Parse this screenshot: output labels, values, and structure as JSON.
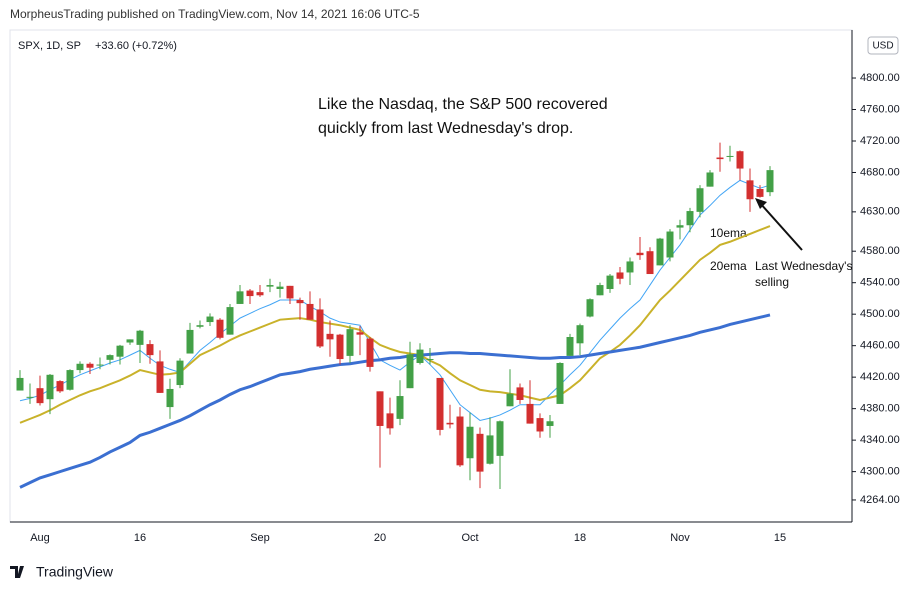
{
  "header": "MorpheusTrading published on TradingView.com, Nov 14, 2021 16:06 UTC-5",
  "footer": "TradingView",
  "chart_data": {
    "type": "candlestick",
    "symbol": "SPX, 1D, SP",
    "change": "+33.60 (+0.72%)",
    "currency": "USD",
    "annotations": [
      "Like the Nasdaq, the S&P 500 recovered",
      "quickly from last Wednesday's drop.",
      "10ema",
      "20ema",
      "Last Wednesday's",
      "selling"
    ],
    "categories": [
      null,
      null,
      "Aug",
      null,
      null,
      null,
      null,
      null,
      null,
      null,
      null,
      null,
      "16",
      null,
      null,
      null,
      null,
      null,
      null,
      null,
      null,
      null,
      null,
      null,
      "Sep",
      null,
      null,
      null,
      null,
      null,
      null,
      null,
      null,
      null,
      null,
      null,
      "20",
      null,
      null,
      null,
      null,
      null,
      null,
      null,
      null,
      "Oct",
      null,
      null,
      null,
      null,
      null,
      null,
      null,
      null,
      null,
      null,
      "18",
      null,
      null,
      null,
      null,
      null,
      null,
      null,
      null,
      null,
      "Nov",
      null,
      null,
      null,
      null,
      null,
      null,
      null,
      null,
      null,
      "15"
    ],
    "open": [
      4403,
      4395,
      4406,
      4392,
      4415,
      4404,
      4429,
      4437,
      4436,
      4442,
      4446,
      4464,
      4461,
      4462,
      4440,
      4382,
      4410,
      4450,
      4484,
      4490,
      4493,
      4474,
      4513,
      4530,
      4528,
      4535,
      4532,
      4536,
      4518,
      4513,
      4506,
      4475,
      4474,
      4447,
      4477,
      4469,
      4402,
      4374,
      4367,
      4406,
      4438,
      4442,
      4419,
      4362,
      4370,
      4317,
      4348,
      4310,
      4320,
      4383,
      4407,
      4386,
      4368,
      4358,
      4386,
      4447,
      4463,
      4497,
      4524,
      4532,
      4553,
      4553,
      4578,
      4580,
      4562,
      4572,
      4610,
      4613,
      4630,
      4662,
      4699,
      4701,
      4707,
      4670,
      4659,
      4655,
      null
    ],
    "high": [
      4429,
      4412,
      4422,
      4424,
      4416,
      4430,
      4440,
      4439,
      4445,
      4449,
      4461,
      4468,
      4480,
      4467,
      4454,
      4418,
      4444,
      4489,
      4492,
      4501,
      4495,
      4513,
      4537,
      4532,
      4537,
      4545,
      4541,
      4536,
      4521,
      4529,
      4520,
      4492,
      4475,
      4486,
      4485,
      4471,
      4402,
      4394,
      4416,
      4465,
      4463,
      4457,
      4419,
      4385,
      4382,
      4375,
      4356,
      4369,
      4365,
      4430,
      4412,
      4416,
      4374,
      4372,
      4439,
      4475,
      4488,
      4520,
      4540,
      4551,
      4560,
      4572,
      4598,
      4585,
      4597,
      4608,
      4620,
      4635,
      4664,
      4683,
      4718,
      4714,
      4708,
      4685,
      4664,
      4688,
      null
    ],
    "low": [
      4403,
      4386,
      4384,
      4373,
      4400,
      4403,
      4425,
      4424,
      4430,
      4436,
      4436,
      4461,
      4438,
      4437,
      4400,
      4367,
      4406,
      4450,
      4482,
      4485,
      4468,
      4474,
      4513,
      4513,
      4522,
      4528,
      4521,
      4513,
      4493,
      4493,
      4457,
      4446,
      4436,
      4438,
      4448,
      4427,
      4305,
      4347,
      4359,
      4406,
      4436,
      4436,
      4346,
      4355,
      4306,
      4289,
      4279,
      4309,
      4278,
      4383,
      4386,
      4361,
      4343,
      4343,
      4386,
      4447,
      4448,
      4496,
      4524,
      4527,
      4538,
      4537,
      4569,
      4551,
      4562,
      4567,
      4595,
      4604,
      4623,
      4662,
      4681,
      4694,
      4670,
      4630,
      4648,
      4650,
      null
    ],
    "close": [
      4419,
      4395,
      4387,
      4423,
      4402,
      4429,
      4437,
      4432,
      4436,
      4448,
      4460,
      4468,
      4479,
      4448,
      4400,
      4405,
      4441,
      4480,
      4486,
      4497,
      4470,
      4509,
      4529,
      4523,
      4524,
      4537,
      4535,
      4520,
      4514,
      4493,
      4459,
      4468,
      4443,
      4481,
      4474,
      4433,
      4358,
      4355,
      4396,
      4449,
      4455,
      4443,
      4353,
      4360,
      4308,
      4357,
      4300,
      4346,
      4364,
      4399,
      4391,
      4361,
      4351,
      4364,
      4438,
      4471,
      4486,
      4519,
      4537,
      4549,
      4545,
      4567,
      4575,
      4551,
      4596,
      4605,
      4613,
      4631,
      4660,
      4680,
      4697,
      4701,
      4685,
      4646,
      4649,
      4683,
      null
    ],
    "up_color": "#43a047",
    "down_color": "#d32f2f",
    "series": [
      {
        "color": "#42a5f5",
        "width": 1,
        "values": [
          4390,
          4393,
          4397,
          4404,
          4410,
          4417,
          4423,
          4428,
          4433,
          4438,
          4442,
          4448,
          4454,
          4444,
          4435,
          4430,
          4426,
          4440,
          4454,
          4464,
          4475,
          4485,
          4495,
          4501,
          4507,
          4512,
          4518,
          4518,
          4518,
          4510,
          4503,
          4495,
          4490,
          4488,
          4486,
          4464,
          4442,
          4435,
          4429,
          4439,
          4448,
          4436,
          4423,
          4404,
          4385,
          4375,
          4365,
          4368,
          4372,
          4378,
          4385,
          4385,
          4385,
          4398,
          4410,
          4423,
          4435,
          4451,
          4467,
          4481,
          4495,
          4507,
          4518,
          4537,
          4556,
          4572,
          4588,
          4607,
          4626,
          4638,
          4651,
          4661,
          4670,
          4665,
          4660,
          4664,
          null
        ]
      },
      {
        "color": "#c9b22a",
        "width": 2,
        "values": [
          4362,
          4367,
          4372,
          4378,
          4385,
          4391,
          4397,
          4402,
          4406,
          4411,
          4416,
          4422,
          4429,
          4426,
          4423,
          4424,
          4426,
          4437,
          4448,
          4454,
          4460,
          4467,
          4473,
          4478,
          4483,
          4488,
          4493,
          4494,
          4495,
          4493,
          4490,
          4488,
          4486,
          4483,
          4480,
          4470,
          4461,
          4456,
          4452,
          4450,
          4448,
          4441,
          4435,
          4425,
          4416,
          4410,
          4404,
          4402,
          4401,
          4399,
          4397,
          4394,
          4391,
          4394,
          4397,
          4406,
          4416,
          4430,
          4444,
          4452,
          4461,
          4473,
          4486,
          4502,
          4518,
          4530,
          4543,
          4556,
          4569,
          4578,
          4588,
          4592,
          4597,
          4602,
          4607,
          4612,
          null
        ]
      },
      {
        "color": "#3b6fd1",
        "width": 3,
        "values": [
          4280,
          4286,
          4292,
          4296,
          4300,
          4304,
          4308,
          4312,
          4318,
          4325,
          4331,
          4337,
          4346,
          4350,
          4355,
          4360,
          4365,
          4371,
          4378,
          4385,
          4391,
          4398,
          4404,
          4408,
          4413,
          4418,
          4423,
          4425,
          4427,
          4430,
          4432,
          4434,
          4436,
          4437,
          4439,
          4441,
          4442,
          4444,
          4445,
          4447,
          4448,
          4449,
          4450,
          4451,
          4451,
          4450,
          4450,
          4449,
          4448,
          4447,
          4446,
          4445,
          4444,
          4444,
          4445,
          4445,
          4446,
          4448,
          4450,
          4452,
          4454,
          4456,
          4458,
          4461,
          4464,
          4467,
          4470,
          4473,
          4477,
          4480,
          4483,
          4487,
          4490,
          4493,
          4496,
          4499,
          null
        ]
      }
    ],
    "ylim": [
      4236,
      4861
    ],
    "yticks": [
      {
        "value": 4800,
        "label": "4800.00"
      },
      {
        "value": 4760,
        "label": "4760.00"
      },
      {
        "value": 4720,
        "label": "4720.00"
      },
      {
        "value": 4680,
        "label": "4680.00"
      },
      {
        "value": 4630,
        "label": "4630.00"
      },
      {
        "value": 4580,
        "label": "4580.00"
      },
      {
        "value": 4540,
        "label": "4540.00"
      },
      {
        "value": 4500,
        "label": "4500.00"
      },
      {
        "value": 4460,
        "label": "4460.00"
      },
      {
        "value": 4420,
        "label": "4420.00"
      },
      {
        "value": 4380,
        "label": "4380.00"
      },
      {
        "value": 4340,
        "label": "4340.00"
      },
      {
        "value": 4300,
        "label": "4300.00"
      },
      {
        "value": 4264,
        "label": "4264.00"
      }
    ]
  }
}
